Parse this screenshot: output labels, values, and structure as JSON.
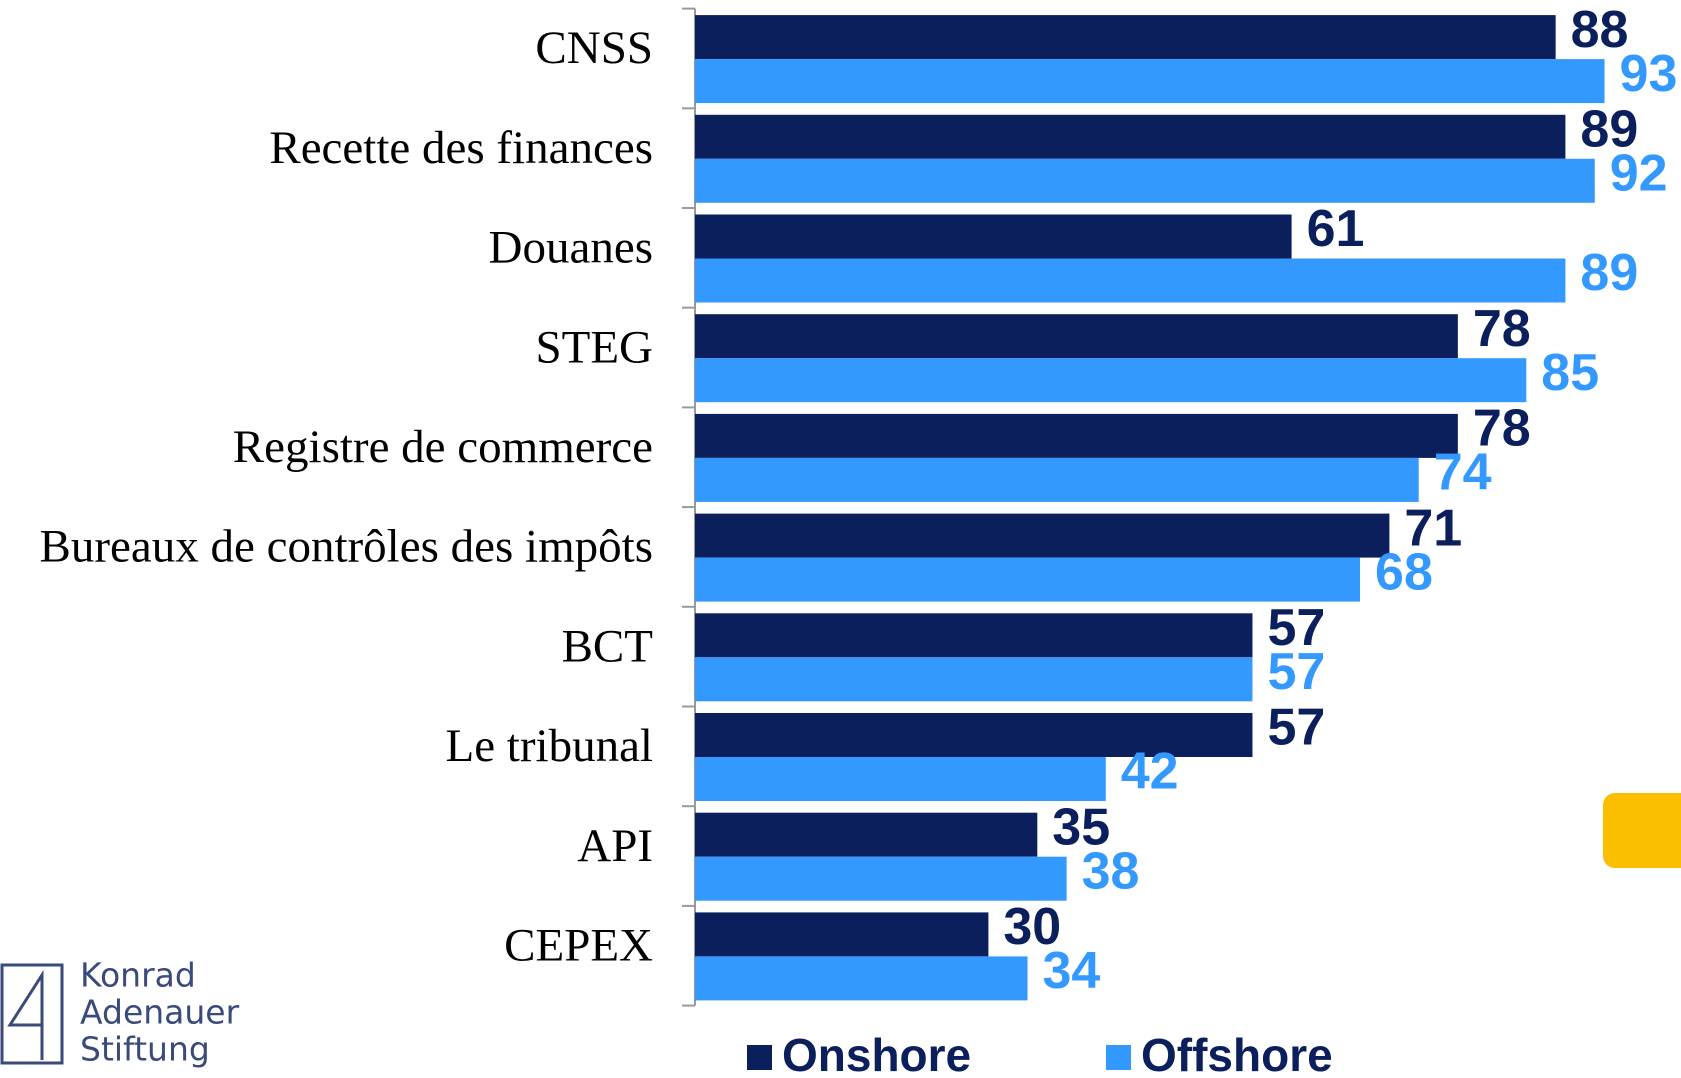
{
  "chart_data": {
    "type": "barh",
    "categories": [
      "CNSS",
      "Recette des finances",
      "Douanes",
      "STEG",
      "Registre de commerce",
      "Bureaux de contrôles des impôts",
      "BCT",
      "Le tribunal",
      "API",
      "CEPEX"
    ],
    "series": [
      {
        "name": "Onshore",
        "color": "#0a1f5c",
        "values": [
          88,
          89,
          61,
          78,
          78,
          71,
          57,
          57,
          35,
          30
        ]
      },
      {
        "name": "Offshore",
        "color": "#3399ff",
        "values": [
          93,
          92,
          89,
          85,
          74,
          68,
          57,
          42,
          38,
          34
        ]
      }
    ]
  },
  "logo": [
    "Konrad",
    "Adenauer",
    "Stiftung"
  ]
}
